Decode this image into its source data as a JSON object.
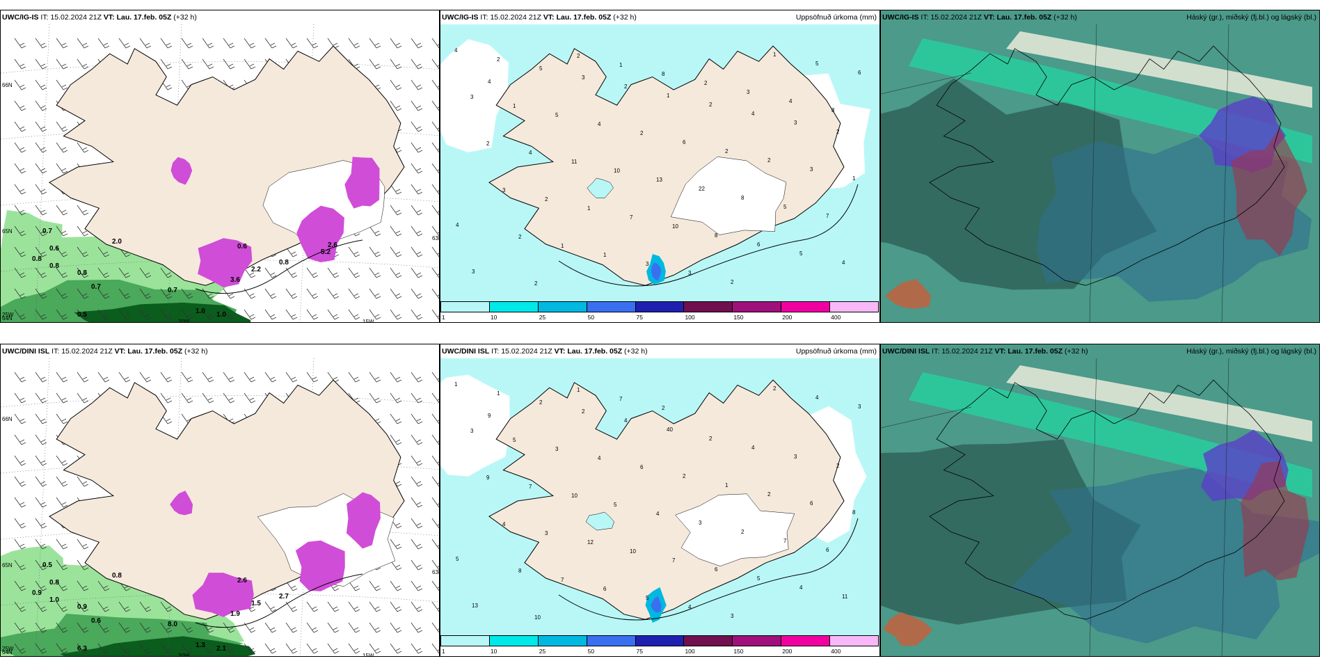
{
  "panels": [
    {
      "id": "r1c1",
      "model": "UWC/IG-IS",
      "it_label": "IT:",
      "it_value": "15.02.2024 21Z",
      "vt_label": "VT:",
      "vt_value": "Lau. 17.feb. 05Z",
      "lead": "(+32 h)",
      "right_title": "",
      "type": "wind-precip",
      "labels": [
        "0.7",
        "0.6",
        "0.8",
        "0.8",
        "0.8",
        "0.7",
        "2.0",
        "0.7",
        "0.5",
        "1.0",
        "1.0",
        "0.8",
        "0.6",
        "3.6",
        "2.2",
        "5.2",
        "2.6",
        "66N",
        "64N",
        "63N",
        "65N",
        "25W",
        "20W",
        "15W"
      ]
    },
    {
      "id": "r1c2",
      "model": "UWC/IG-IS",
      "it_label": "IT:",
      "it_value": "15.02.2024 21Z",
      "vt_label": "VT:",
      "vt_value": "Lau. 17.feb. 05Z",
      "lead": "(+32 h)",
      "right_title": "Uppsöfnuð úrkoma (mm)",
      "type": "accum",
      "labels": [
        "4",
        "2",
        "5",
        "3",
        "2",
        "1",
        "2",
        "4",
        "3",
        "2",
        "3",
        "1",
        "5",
        "4",
        "2",
        "6",
        "2",
        "2",
        "3",
        "1",
        "2",
        "4",
        "11",
        "10",
        "13",
        "22",
        "8",
        "5",
        "7",
        "4",
        "3",
        "2",
        "1",
        "7",
        "10",
        "8",
        "6",
        "5",
        "4",
        "3",
        "2",
        "1",
        "1",
        "3",
        "3",
        "2",
        "1",
        "5",
        "6",
        "4",
        "2",
        "2",
        "1",
        "8",
        "2",
        "3",
        "4",
        "8"
      ]
    },
    {
      "id": "r1c3",
      "model": "UWC/IG-IS",
      "it_label": "IT:",
      "it_value": "15.02.2024 21Z",
      "vt_label": "VT:",
      "vt_value": "Lau. 17.feb. 05Z",
      "lead": "(+32 h)",
      "right_title": "Háský (gr.), miðský (fj.bl.) og lágský (bl.)",
      "type": "cloud",
      "labels": []
    },
    {
      "id": "r2c1",
      "model": "UWC/DINI ISL",
      "it_label": "IT:",
      "it_value": "15.02.2024 21Z",
      "vt_label": "VT:",
      "vt_value": "Lau. 17.feb. 05Z",
      "lead": "(+32 h)",
      "right_title": "",
      "type": "wind-precip",
      "labels": [
        "0.5",
        "0.8",
        "0.9",
        "1.0",
        "0.9",
        "0.6",
        "0.8",
        "8.0",
        "6.3",
        "2.1",
        "1.3",
        "2.7",
        "2.6",
        "1.9",
        "1.5",
        "66N",
        "64N",
        "63N",
        "65N",
        "25W",
        "20W",
        "15W"
      ]
    },
    {
      "id": "r2c2",
      "model": "UWC/DINI ISL",
      "it_label": "IT:",
      "it_value": "15.02.2024 21Z",
      "vt_label": "VT:",
      "vt_value": "Lau. 17.feb. 05Z",
      "lead": "(+32 h)",
      "right_title": "Uppsöfnuð úrkoma (mm)",
      "type": "accum",
      "labels": [
        "1",
        "1",
        "2",
        "2",
        "4",
        "40",
        "2",
        "4",
        "3",
        "2",
        "3",
        "5",
        "3",
        "4",
        "6",
        "2",
        "1",
        "2",
        "6",
        "8",
        "9",
        "7",
        "10",
        "5",
        "4",
        "3",
        "2",
        "7",
        "6",
        "5",
        "4",
        "3",
        "12",
        "10",
        "7",
        "6",
        "5",
        "4",
        "11",
        "13",
        "8",
        "7",
        "6",
        "5",
        "4",
        "3",
        "2",
        "4",
        "3",
        "9",
        "10",
        "1",
        "7",
        "2"
      ]
    },
    {
      "id": "r2c3",
      "model": "UWC/DINI ISL",
      "it_label": "IT:",
      "it_value": "15.02.2024 21Z",
      "vt_label": "VT:",
      "vt_value": "Lau. 17.feb. 05Z",
      "lead": "(+32 h)",
      "right_title": "Háský (gr.), miðský (fj.bl.) og lágský (bl.)",
      "type": "cloud",
      "labels": []
    }
  ],
  "colorbar": {
    "ticks": [
      "1",
      "10",
      "25",
      "50",
      "75",
      "100",
      "150",
      "200",
      "400"
    ],
    "colors": [
      "#b8f7f7",
      "#00e8e8",
      "#00b8e0",
      "#3a6ff0",
      "#2020b0",
      "#70104f",
      "#a0107a",
      "#f000a0",
      "#f8b8f8"
    ]
  },
  "palette": {
    "land": "#f5e9dc",
    "sea_precip": "#b9f7f7",
    "precip_green_light": "#9be39b",
    "precip_green_dark": "#0b5d1e",
    "snow_purple": "#d04dd8",
    "cloud_base": "#4b9a8a",
    "cloud_dark": "#2e5f55",
    "cloud_bright": "#21d9a2",
    "cloud_mid_purple": "#5a3fc8",
    "cloud_red": "#a0344a"
  }
}
